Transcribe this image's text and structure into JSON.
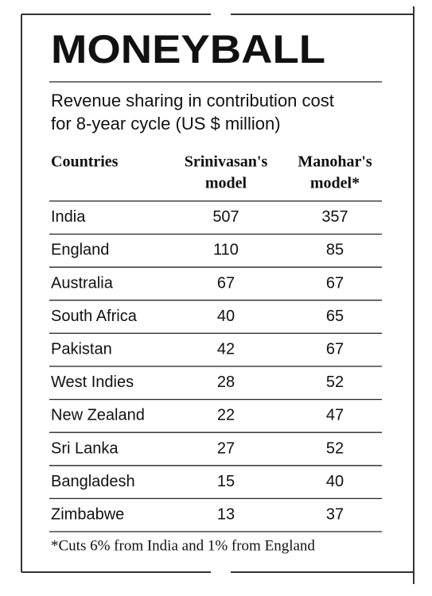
{
  "header": {
    "title": "MONEYBALL",
    "subtitle": [
      "Revenue sharing in contribution cost",
      "for 8-year cycle (US $ million)"
    ]
  },
  "table": {
    "columns": [
      [
        "Countries"
      ],
      [
        "Srinivasan's",
        "model"
      ],
      [
        "Manohar's",
        "model*"
      ]
    ],
    "rows": [
      [
        "India",
        507,
        357
      ],
      [
        "England",
        110,
        85
      ],
      [
        "Australia",
        67,
        67
      ],
      [
        "South Africa",
        40,
        65
      ],
      [
        "Pakistan",
        42,
        67
      ],
      [
        "West Indies",
        28,
        52
      ],
      [
        "New Zealand",
        22,
        47
      ],
      [
        "Sri Lanka",
        27,
        52
      ],
      [
        "Bangladesh",
        15,
        40
      ],
      [
        "Zimbabwe",
        13,
        37
      ]
    ]
  },
  "footnote": "*Cuts 6% from India and 1% from England"
}
